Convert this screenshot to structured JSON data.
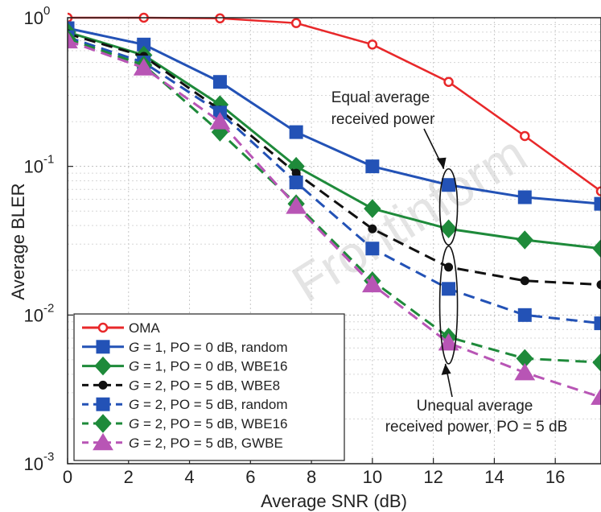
{
  "chart_data": {
    "type": "line",
    "xlabel": "Average SNR (dB)",
    "ylabel": "Average BLER",
    "xlim": [
      0,
      17.5
    ],
    "ylim": [
      0.001,
      1
    ],
    "yscale": "log",
    "x_ticks": [
      "0",
      "2",
      "4",
      "6",
      "8",
      "10",
      "12",
      "14",
      "16"
    ],
    "y_ticks": [
      {
        "base": "10",
        "exp": "0"
      },
      {
        "base": "10",
        "exp": "-1"
      },
      {
        "base": "10",
        "exp": "-2"
      },
      {
        "base": "10",
        "exp": "-3"
      }
    ],
    "grid": true,
    "legend_position": "bottom-left",
    "series": [
      {
        "name": "OMA",
        "color": "#e8282a",
        "style": "solid",
        "marker": "circle",
        "x": [
          0,
          2.5,
          5,
          7.5,
          10,
          12.5,
          15,
          17.5
        ],
        "y": [
          1.0,
          1.0,
          0.99,
          0.92,
          0.66,
          0.37,
          0.16,
          0.068
        ]
      },
      {
        "name": "G = 1, PO = 0 dB, random",
        "color": "#2352b6",
        "style": "solid",
        "marker": "square",
        "x": [
          0,
          2.5,
          5,
          7.5,
          10,
          12.5,
          15,
          17.5
        ],
        "y": [
          0.85,
          0.66,
          0.37,
          0.17,
          0.1,
          0.075,
          0.062,
          0.056
        ]
      },
      {
        "name": "G = 1, PO = 0 dB, WBE16",
        "color": "#1e8a3a",
        "style": "solid",
        "marker": "diamond",
        "x": [
          0,
          2.5,
          5,
          7.5,
          10,
          12.5,
          15,
          17.5
        ],
        "y": [
          0.8,
          0.56,
          0.26,
          0.1,
          0.052,
          0.038,
          0.032,
          0.028
        ]
      },
      {
        "name": "G = 2, PO = 5 dB, WBE8",
        "color": "#111111",
        "style": "dashed",
        "marker": "circle",
        "x": [
          0,
          2.5,
          5,
          7.5,
          10,
          12.5,
          15,
          17.5
        ],
        "y": [
          0.78,
          0.55,
          0.24,
          0.09,
          0.038,
          0.021,
          0.017,
          0.016
        ]
      },
      {
        "name": "G = 2, PO = 5 dB, random",
        "color": "#2352b6",
        "style": "dashed",
        "marker": "square",
        "x": [
          0,
          2.5,
          5,
          7.5,
          10,
          12.5,
          15,
          17.5
        ],
        "y": [
          0.74,
          0.5,
          0.23,
          0.078,
          0.028,
          0.015,
          0.01,
          0.0088
        ]
      },
      {
        "name": "G = 2, PO = 5 dB, WBE16",
        "color": "#1e8a3a",
        "style": "dashed",
        "marker": "diamond",
        "x": [
          0,
          2.5,
          5,
          7.5,
          10,
          12.5,
          15,
          17.5
        ],
        "y": [
          0.72,
          0.48,
          0.17,
          0.056,
          0.017,
          0.0071,
          0.0051,
          0.0048
        ]
      },
      {
        "name": "G = 2, PO = 5 dB, GWBE",
        "color": "#b855b5",
        "style": "dashed",
        "marker": "triangle",
        "x": [
          0,
          2.5,
          5,
          7.5,
          10,
          12.5,
          15,
          17.5
        ],
        "y": [
          0.7,
          0.46,
          0.2,
          0.054,
          0.016,
          0.0065,
          0.0041,
          0.0028
        ]
      }
    ],
    "annotations": [
      {
        "line1": "Equal average",
        "line2": "received power"
      },
      {
        "line1": "Unequal average",
        "line2": "received power, PO = 5 dB"
      }
    ],
    "watermark": "Frontinform"
  }
}
